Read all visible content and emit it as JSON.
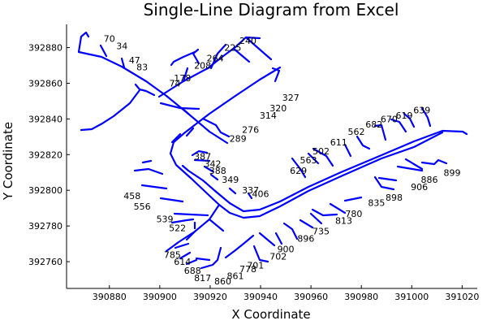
{
  "chart_data": {
    "type": "line",
    "title": "Single-Line Diagram from Excel",
    "xlabel": "X Coordinate",
    "ylabel": "Y Coordinate",
    "xlim": [
      390863,
      391026
    ],
    "ylim": [
      392745,
      392893
    ],
    "xticks": [
      390880,
      390900,
      390920,
      390940,
      390960,
      390980,
      391000,
      391020
    ],
    "yticks": [
      392760,
      392780,
      392800,
      392820,
      392840,
      392860,
      392880
    ],
    "grid": false,
    "legend": "none",
    "line_color": "#0000ff",
    "node_labels": [
      {
        "text": "70",
        "x": 390880,
        "y": 392885
      },
      {
        "text": "34",
        "x": 390885,
        "y": 392881
      },
      {
        "text": "47",
        "x": 390890,
        "y": 392873
      },
      {
        "text": "83",
        "x": 390893,
        "y": 392869
      },
      {
        "text": "178",
        "x": 390909,
        "y": 392863
      },
      {
        "text": "74",
        "x": 390906,
        "y": 392860
      },
      {
        "text": "208",
        "x": 390917,
        "y": 392870
      },
      {
        "text": "264",
        "x": 390922,
        "y": 392874
      },
      {
        "text": "225",
        "x": 390929,
        "y": 392880
      },
      {
        "text": "240",
        "x": 390935,
        "y": 392884
      },
      {
        "text": "327",
        "x": 390952,
        "y": 392852
      },
      {
        "text": "320",
        "x": 390947,
        "y": 392846
      },
      {
        "text": "314",
        "x": 390943,
        "y": 392842
      },
      {
        "text": "276",
        "x": 390936,
        "y": 392834
      },
      {
        "text": "289",
        "x": 390931,
        "y": 392829
      },
      {
        "text": "387",
        "x": 390917,
        "y": 392819
      },
      {
        "text": "342",
        "x": 390921,
        "y": 392815
      },
      {
        "text": "388",
        "x": 390923,
        "y": 392811
      },
      {
        "text": "349",
        "x": 390928,
        "y": 392806
      },
      {
        "text": "337",
        "x": 390936,
        "y": 392800
      },
      {
        "text": "406",
        "x": 390940,
        "y": 392798
      },
      {
        "text": "458",
        "x": 390889,
        "y": 392797
      },
      {
        "text": "556",
        "x": 390893,
        "y": 392791
      },
      {
        "text": "539",
        "x": 390902,
        "y": 392784
      },
      {
        "text": "522",
        "x": 390907,
        "y": 392779
      },
      {
        "text": "785",
        "x": 390905,
        "y": 392764
      },
      {
        "text": "614",
        "x": 390909,
        "y": 392760
      },
      {
        "text": "688",
        "x": 390913,
        "y": 392755
      },
      {
        "text": "817",
        "x": 390917,
        "y": 392751
      },
      {
        "text": "860",
        "x": 390925,
        "y": 392749
      },
      {
        "text": "861",
        "x": 390930,
        "y": 392752
      },
      {
        "text": "778",
        "x": 390935,
        "y": 392756
      },
      {
        "text": "701",
        "x": 390938,
        "y": 392758
      },
      {
        "text": "702",
        "x": 390947,
        "y": 392763
      },
      {
        "text": "900",
        "x": 390950,
        "y": 392767
      },
      {
        "text": "896",
        "x": 390958,
        "y": 392773
      },
      {
        "text": "735",
        "x": 390964,
        "y": 392777
      },
      {
        "text": "813",
        "x": 390973,
        "y": 392783
      },
      {
        "text": "780",
        "x": 390977,
        "y": 392787
      },
      {
        "text": "835",
        "x": 390986,
        "y": 392793
      },
      {
        "text": "898",
        "x": 390993,
        "y": 392796
      },
      {
        "text": "906",
        "x": 391003,
        "y": 392802
      },
      {
        "text": "886",
        "x": 391007,
        "y": 392806
      },
      {
        "text": "899",
        "x": 391016,
        "y": 392810
      },
      {
        "text": "629",
        "x": 390955,
        "y": 392811
      },
      {
        "text": "563",
        "x": 390959,
        "y": 392817
      },
      {
        "text": "502",
        "x": 390964,
        "y": 392822
      },
      {
        "text": "611",
        "x": 390971,
        "y": 392827
      },
      {
        "text": "562",
        "x": 390978,
        "y": 392833
      },
      {
        "text": "682",
        "x": 390985,
        "y": 392837
      },
      {
        "text": "670",
        "x": 390991,
        "y": 392840
      },
      {
        "text": "619",
        "x": 390997,
        "y": 392842
      },
      {
        "text": "639",
        "x": 391004,
        "y": 392845
      }
    ]
  }
}
